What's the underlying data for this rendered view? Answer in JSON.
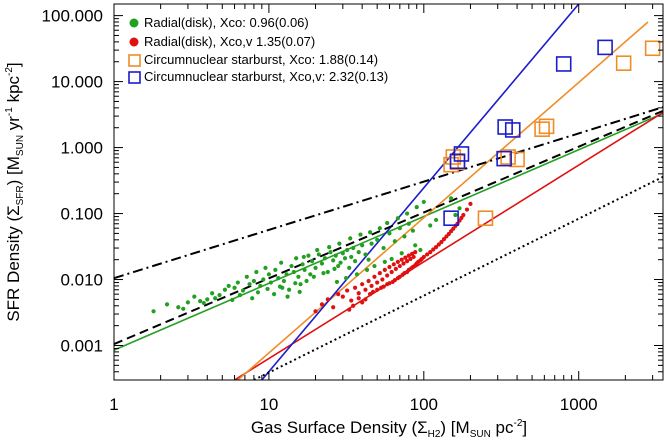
{
  "chart_data": {
    "type": "scatter",
    "xscale": "log",
    "yscale": "log",
    "xlim": [
      1,
      3500
    ],
    "ylim": [
      0.0003,
      150
    ],
    "x_ticks": [
      {
        "value": 1,
        "label": "1"
      },
      {
        "value": 10,
        "label": "10"
      },
      {
        "value": 100,
        "label": "100"
      },
      {
        "value": 1000,
        "label": "1000"
      }
    ],
    "y_ticks": [
      {
        "value": 0.001,
        "label": "0.001"
      },
      {
        "value": 0.01,
        "label": "0.010"
      },
      {
        "value": 0.1,
        "label": "0.100"
      },
      {
        "value": 1,
        "label": "1.000"
      },
      {
        "value": 10,
        "label": "10.000"
      },
      {
        "value": 100,
        "label": "100.000"
      }
    ],
    "xlabel": {
      "main": "Gas Surface Density (Σ",
      "sub": "H2",
      "mid": ") [M",
      "sub2": "SUN",
      "end": " pc",
      "sup": "-2",
      "close": "]"
    },
    "ylabel": {
      "main": "SFR Density (Σ",
      "sub": "SFR",
      "mid": ") [M",
      "sub2": "SUN",
      "end": " yr",
      "sup": "-1",
      "end2": " kpc",
      "sup2": "-2",
      "close": "]"
    },
    "legend": [
      {
        "label": "Radial(disk), Xco: 0.96(0.06)",
        "color": "#22a022",
        "marker": "dot"
      },
      {
        "label": "Radial(disk), Xco,v 1.35(0.07)",
        "color": "#e01010",
        "marker": "dot"
      },
      {
        "label": "Circumnuclear starburst, Xco: 1.88(0.14)",
        "color": "#f08c28",
        "marker": "square"
      },
      {
        "label": "Circumnuclear starburst, Xco,v: 2.32(0.13)",
        "color": "#1c1ccc",
        "marker": "square"
      }
    ],
    "series": [
      {
        "name": "Radial(disk), Xco: 0.96(0.06)",
        "color": "#22a022",
        "points": [
          [
            1.8,
            0.0033
          ],
          [
            2.2,
            0.0042
          ],
          [
            2.6,
            0.0038
          ],
          [
            3.0,
            0.0045
          ],
          [
            3.3,
            0.0055
          ],
          [
            3.6,
            0.0047
          ],
          [
            4.0,
            0.005
          ],
          [
            4.3,
            0.0062
          ],
          [
            4.8,
            0.0058
          ],
          [
            5.2,
            0.007
          ],
          [
            5.5,
            0.008
          ],
          [
            6.0,
            0.0075
          ],
          [
            6.3,
            0.009
          ],
          [
            6.8,
            0.0068
          ],
          [
            7.2,
            0.011
          ],
          [
            7.5,
            0.0085
          ],
          [
            8.0,
            0.0095
          ],
          [
            8.3,
            0.013
          ],
          [
            8.8,
            0.008
          ],
          [
            9.2,
            0.01
          ],
          [
            9.5,
            0.015
          ],
          [
            10.0,
            0.012
          ],
          [
            10.3,
            0.009
          ],
          [
            10.8,
            0.006
          ],
          [
            11.0,
            0.014
          ],
          [
            11.5,
            0.0105
          ],
          [
            12.0,
            0.018
          ],
          [
            12.5,
            0.0095
          ],
          [
            13.0,
            0.012
          ],
          [
            13.5,
            0.007
          ],
          [
            14.0,
            0.016
          ],
          [
            14.5,
            0.013
          ],
          [
            15.0,
            0.021
          ],
          [
            15.5,
            0.011
          ],
          [
            16.0,
            0.0085
          ],
          [
            16.5,
            0.017
          ],
          [
            17.0,
            0.014
          ],
          [
            18.0,
            0.023
          ],
          [
            18.5,
            0.012
          ],
          [
            19.0,
            0.019
          ],
          [
            20.0,
            0.015
          ],
          [
            21.0,
            0.024
          ],
          [
            22.0,
            0.0175
          ],
          [
            23.0,
            0.021
          ],
          [
            24.0,
            0.013
          ],
          [
            25.0,
            0.026
          ],
          [
            26.0,
            0.0195
          ],
          [
            27.0,
            0.023
          ],
          [
            28.0,
            0.016
          ],
          [
            29.0,
            0.018
          ],
          [
            30.0,
            0.025
          ],
          [
            31.0,
            0.021
          ],
          [
            32.0,
            0.028
          ],
          [
            33.0,
            0.015
          ],
          [
            34.0,
            0.022
          ],
          [
            35.0,
            0.03
          ],
          [
            36.0,
            0.019
          ],
          [
            38.0,
            0.026
          ],
          [
            40.0,
            0.033
          ],
          [
            42.0,
            0.024
          ],
          [
            44.0,
            0.02
          ],
          [
            46.0,
            0.035
          ],
          [
            50.0,
            0.04
          ],
          [
            55.0,
            0.03
          ],
          [
            60.0,
            0.05
          ],
          [
            65.0,
            0.038
          ],
          [
            70.0,
            0.06
          ],
          [
            75.0,
            0.045
          ],
          [
            80.0,
            0.07
          ],
          [
            85.0,
            0.055
          ],
          [
            12.2,
            0.0075
          ],
          [
            14.8,
            0.0088
          ],
          [
            17.5,
            0.0095
          ],
          [
            19.5,
            0.011
          ],
          [
            22.5,
            0.0125
          ],
          [
            26.5,
            0.0145
          ],
          [
            9.8,
            0.0072
          ],
          [
            11.8,
            0.0078
          ],
          [
            13.2,
            0.0055
          ],
          [
            15.8,
            0.0065
          ],
          [
            8.5,
            0.0064
          ],
          [
            7.8,
            0.0052
          ],
          [
            6.5,
            0.0058
          ],
          [
            5.8,
            0.0049
          ],
          [
            4.5,
            0.0052
          ],
          [
            3.8,
            0.0044
          ],
          [
            2.8,
            0.0036
          ],
          [
            16.8,
            0.022
          ],
          [
            20.5,
            0.028
          ],
          [
            24.5,
            0.031
          ],
          [
            28.5,
            0.035
          ],
          [
            33.5,
            0.042
          ],
          [
            39.0,
            0.048
          ],
          [
            45.0,
            0.052
          ],
          [
            52.0,
            0.06
          ],
          [
            58.0,
            0.072
          ],
          [
            68.0,
            0.085
          ],
          [
            78.0,
            0.1
          ],
          [
            90.0,
            0.125
          ],
          [
            100.0,
            0.15
          ],
          [
            150.0,
            0.17
          ],
          [
            160.0,
            0.095
          ],
          [
            170.0,
            0.12
          ],
          [
            120.0,
            0.08
          ],
          [
            110.0,
            0.066
          ],
          [
            95.0,
            0.028
          ],
          [
            88.0,
            0.033
          ],
          [
            72.0,
            0.025
          ],
          [
            62.0,
            0.0205
          ],
          [
            56.0,
            0.0185
          ],
          [
            48.0,
            0.016
          ],
          [
            43.0,
            0.014
          ],
          [
            37.0,
            0.012
          ],
          [
            31.5,
            0.0105
          ],
          [
            27.5,
            0.0092
          ]
        ]
      },
      {
        "name": "Radial(disk), Xco,v 1.35(0.07)",
        "color": "#e01010",
        "points": [
          [
            20.0,
            0.0033
          ],
          [
            22.0,
            0.0042
          ],
          [
            24.0,
            0.005
          ],
          [
            26.0,
            0.0038
          ],
          [
            28.0,
            0.006
          ],
          [
            30.0,
            0.0055
          ],
          [
            32.0,
            0.0068
          ],
          [
            34.0,
            0.0048
          ],
          [
            36.0,
            0.0075
          ],
          [
            38.0,
            0.0062
          ],
          [
            40.0,
            0.0085
          ],
          [
            42.0,
            0.007
          ],
          [
            44.0,
            0.0095
          ],
          [
            46.0,
            0.008
          ],
          [
            48.0,
            0.011
          ],
          [
            50.0,
            0.009
          ],
          [
            52.0,
            0.0125
          ],
          [
            54.0,
            0.01
          ],
          [
            56.0,
            0.014
          ],
          [
            58.0,
            0.0115
          ],
          [
            60.0,
            0.0155
          ],
          [
            62.0,
            0.013
          ],
          [
            64.0,
            0.017
          ],
          [
            66.0,
            0.0145
          ],
          [
            68.0,
            0.0185
          ],
          [
            70.0,
            0.016
          ],
          [
            72.0,
            0.02
          ],
          [
            74.0,
            0.0175
          ],
          [
            76.0,
            0.0215
          ],
          [
            78.0,
            0.019
          ],
          [
            80.0,
            0.023
          ],
          [
            82.0,
            0.0205
          ],
          [
            84.0,
            0.0245
          ],
          [
            86.0,
            0.022
          ],
          [
            88.0,
            0.026
          ],
          [
            45.0,
            0.006
          ],
          [
            50.0,
            0.007
          ],
          [
            55.0,
            0.0078
          ],
          [
            60.0,
            0.0088
          ],
          [
            65.0,
            0.0098
          ],
          [
            70.0,
            0.011
          ],
          [
            75.0,
            0.0125
          ],
          [
            80.0,
            0.014
          ],
          [
            85.0,
            0.0155
          ],
          [
            90.0,
            0.0175
          ],
          [
            95.0,
            0.0195
          ],
          [
            100.0,
            0.022
          ],
          [
            110.0,
            0.026
          ],
          [
            120.0,
            0.031
          ],
          [
            130.0,
            0.037
          ],
          [
            140.0,
            0.045
          ],
          [
            150.0,
            0.054
          ],
          [
            160.0,
            0.065
          ],
          [
            170.0,
            0.078
          ],
          [
            180.0,
            0.095
          ],
          [
            190.0,
            0.115
          ],
          [
            200.0,
            0.14
          ],
          [
            35.0,
            0.004
          ],
          [
            40.0,
            0.0045
          ],
          [
            33.0,
            0.0035
          ],
          [
            38.0,
            0.0052
          ],
          [
            42.0,
            0.005
          ],
          [
            47.0,
            0.0065
          ],
          [
            53.0,
            0.0075
          ],
          [
            58.0,
            0.0085
          ],
          [
            63.0,
            0.0092
          ],
          [
            68.0,
            0.0105
          ],
          [
            73.0,
            0.0118
          ],
          [
            78.0,
            0.013
          ],
          [
            83.0,
            0.0148
          ],
          [
            88.0,
            0.0165
          ],
          [
            92.0,
            0.0185
          ],
          [
            97.0,
            0.0205
          ],
          [
            105.0,
            0.024
          ],
          [
            115.0,
            0.0285
          ],
          [
            125.0,
            0.034
          ],
          [
            135.0,
            0.041
          ],
          [
            145.0,
            0.049
          ],
          [
            155.0,
            0.059
          ],
          [
            165.0,
            0.07
          ],
          [
            175.0,
            0.086
          ]
        ]
      },
      {
        "name": "Circumnuclear starburst, Xco: 1.88(0.14)",
        "color": "#f08c28",
        "points": [
          [
            150,
            0.55
          ],
          [
            155,
            0.72
          ],
          [
            165,
            0.6
          ],
          [
            250,
            0.085
          ],
          [
            350,
            0.72
          ],
          [
            400,
            0.66
          ],
          [
            580,
            1.9
          ],
          [
            620,
            2.1
          ],
          [
            1950,
            19.0
          ],
          [
            3000,
            32.0
          ]
        ]
      },
      {
        "name": "Circumnuclear starburst, Xco,v: 2.32(0.13)",
        "color": "#1c1ccc",
        "points": [
          [
            150,
            0.085
          ],
          [
            165,
            0.62
          ],
          [
            175,
            0.8
          ],
          [
            330,
            0.68
          ],
          [
            335,
            2.05
          ],
          [
            375,
            1.85
          ],
          [
            800,
            18.5
          ],
          [
            1480,
            33.0
          ]
        ]
      }
    ],
    "fit_lines": [
      {
        "name": "green fit",
        "color": "#22a022",
        "style": "solid",
        "x": [
          1,
          3500
        ],
        "y": [
          0.00085,
          3.3
        ]
      },
      {
        "name": "red fit",
        "color": "#e01010",
        "style": "solid",
        "x": [
          6,
          3500
        ],
        "y": [
          0.0003,
          3.4
        ]
      },
      {
        "name": "orange fit",
        "color": "#f08c28",
        "style": "solid",
        "x": [
          6.3,
          2800
        ],
        "y": [
          0.0003,
          80
        ]
      },
      {
        "name": "blue fit",
        "color": "#1c1ccc",
        "style": "solid",
        "x": [
          9,
          1000
        ],
        "y": [
          0.0003,
          150
        ]
      },
      {
        "name": "dash-dot reference",
        "color": "#000000",
        "style": "dashdot",
        "x": [
          1,
          3500
        ],
        "y": [
          0.0105,
          4.1
        ]
      },
      {
        "name": "dashed reference",
        "color": "#000000",
        "style": "dashed",
        "x": [
          1,
          3500
        ],
        "y": [
          0.00105,
          3.6
        ]
      },
      {
        "name": "dotted reference",
        "color": "#000000",
        "style": "dotted",
        "x": [
          8,
          3500
        ],
        "y": [
          0.0003,
          0.36
        ]
      }
    ]
  }
}
